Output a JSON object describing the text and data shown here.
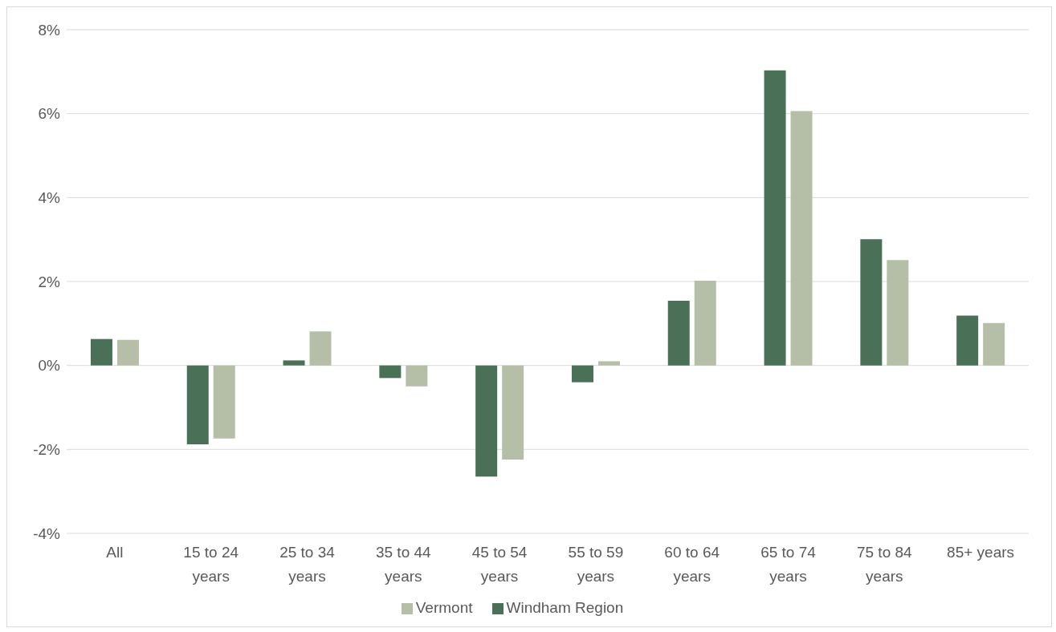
{
  "chart_data": {
    "type": "bar",
    "categories": [
      "All",
      "15 to 24 years",
      "25 to 34 years",
      "35 to 44 years",
      "45 to 54 years",
      "55 to 59 years",
      "60 to 64 years",
      "65 to 74 years",
      "75 to 84 years",
      "85+ years"
    ],
    "series": [
      {
        "name": "Windham Region",
        "color": "#4a7158",
        "values": [
          0.63,
          -1.88,
          0.12,
          -0.3,
          -2.65,
          -0.4,
          1.54,
          7.03,
          3.01,
          1.19
        ]
      },
      {
        "name": "Vermont",
        "color": "#b5bfa8",
        "values": [
          0.61,
          -1.74,
          0.81,
          -0.5,
          -2.24,
          0.1,
          2.02,
          6.06,
          2.51,
          1.01
        ]
      }
    ],
    "ylim": [
      -4,
      8
    ],
    "yticks": [
      {
        "value": -4,
        "label": "-4%"
      },
      {
        "value": -2,
        "label": "-2%"
      },
      {
        "value": 0,
        "label": "0%"
      },
      {
        "value": 2,
        "label": "2%"
      },
      {
        "value": 4,
        "label": "4%"
      },
      {
        "value": 6,
        "label": "6%"
      },
      {
        "value": 8,
        "label": "8%"
      }
    ],
    "grid": "y",
    "legend": "bottom"
  }
}
